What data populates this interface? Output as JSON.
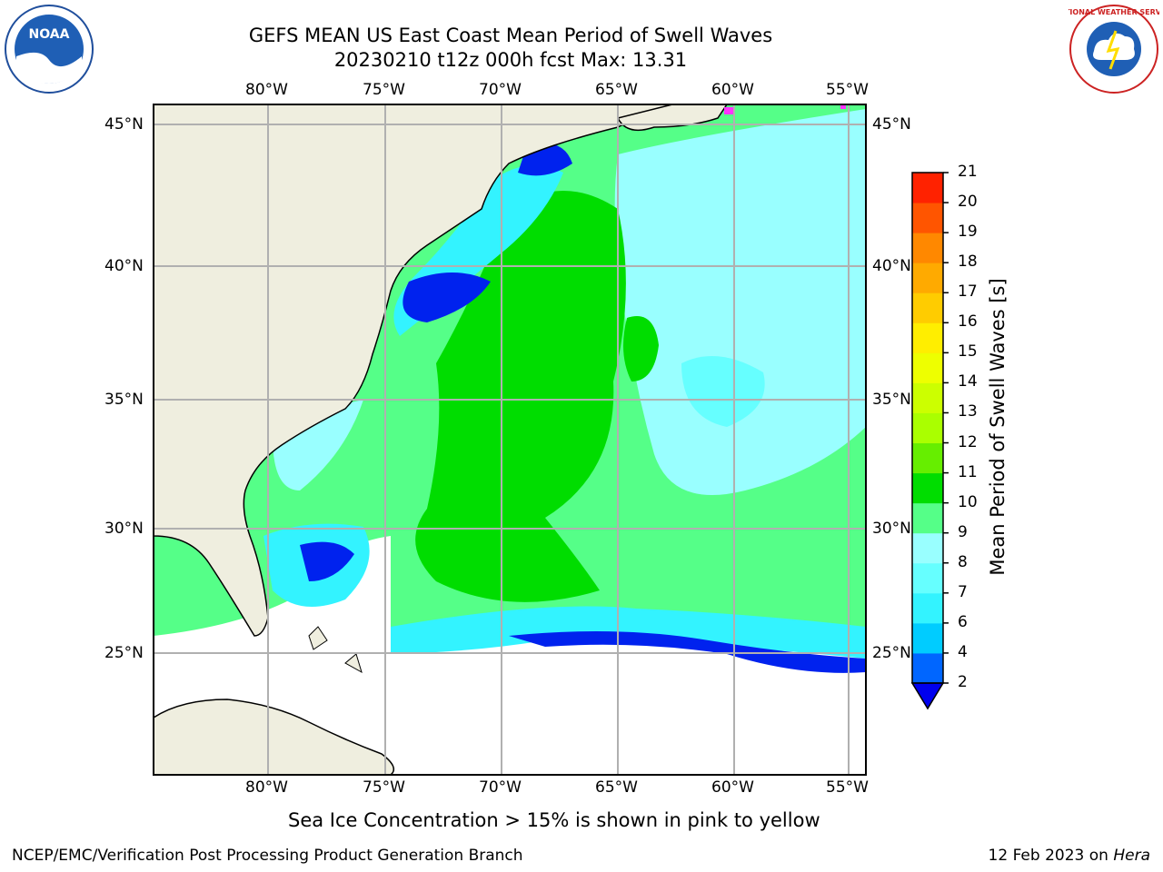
{
  "header": {
    "title_line1": "GEFS MEAN US East Coast Mean Period of Swell Waves",
    "title_line2": "20230210 t12z 000h fcst   Max: 13.31"
  },
  "logos": {
    "left": "NOAA",
    "right": "NATIONAL WEATHER SERVICE"
  },
  "axes": {
    "lon_labels": [
      "80°W",
      "75°W",
      "70°W",
      "65°W",
      "60°W",
      "55°W"
    ],
    "lat_labels": [
      "45°N",
      "40°N",
      "35°N",
      "30°N",
      "25°N"
    ]
  },
  "colorbar": {
    "label": "Mean Period of Swell Waves [s]",
    "ticks": [
      "2",
      "4",
      "6",
      "7",
      "8",
      "9",
      "10",
      "11",
      "12",
      "13",
      "14",
      "15",
      "16",
      "17",
      "18",
      "19",
      "20",
      "21"
    ],
    "colors": [
      "#0066ff",
      "#00ccff",
      "#33f3ff",
      "#66ffff",
      "#99ffff",
      "#55ff88",
      "#00dd00",
      "#66ee00",
      "#aaff00",
      "#ccff00",
      "#eeff00",
      "#ffee00",
      "#ffcc00",
      "#ffaa00",
      "#ff8800",
      "#ff5500",
      "#ff2200",
      "#ff0000"
    ]
  },
  "subtitle": "Sea Ice Concentration > 15% is shown in pink to yellow",
  "footer": {
    "left": "NCEP/EMC/Verification Post Processing Product Generation Branch",
    "right_prefix": "12 Feb 2023 on ",
    "right_host": "Hera"
  }
}
